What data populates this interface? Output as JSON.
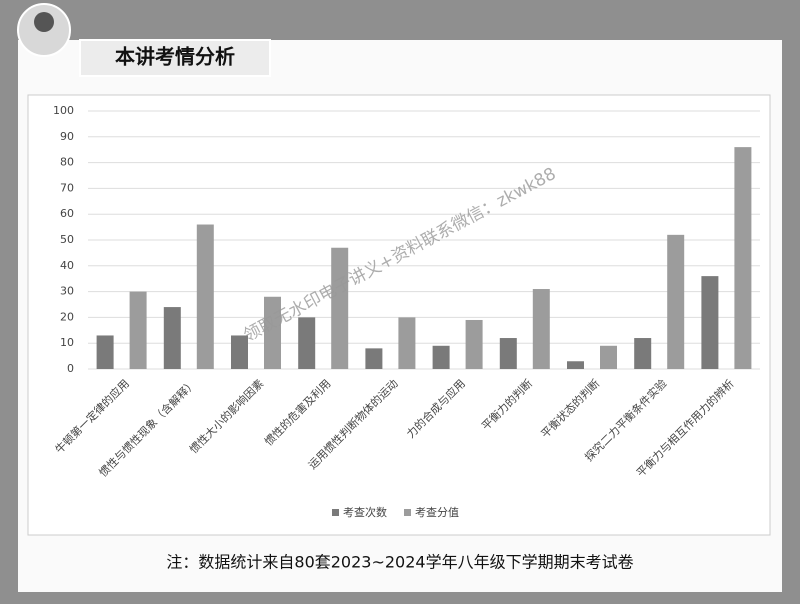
{
  "header": {
    "title": "本讲考情分析"
  },
  "chart_data": {
    "type": "bar",
    "categories": [
      "牛顿第一定律的应用",
      "惯性与惯性现象（含解释）",
      "惯性大小的影响因素",
      "惯性的危害及利用",
      "运用惯性判断物体的运动",
      "力的合成与应用",
      "平衡力的判断",
      "平衡状态的判断",
      "探究二力平衡条件实验",
      "平衡力与相互作用力的辨析"
    ],
    "series": [
      {
        "name": "考查次数",
        "color": "#7a7a7a",
        "values": [
          13,
          24,
          13,
          20,
          8,
          9,
          12,
          3,
          12,
          36
        ]
      },
      {
        "name": "考查分值",
        "color": "#9c9c9c",
        "values": [
          30,
          56,
          28,
          47,
          20,
          19,
          31,
          9,
          52,
          86
        ]
      }
    ],
    "ylim": [
      0,
      100
    ],
    "yticks": [
      0,
      10,
      20,
      30,
      40,
      50,
      60,
      70,
      80,
      90,
      100
    ],
    "grid": true,
    "legend": "bottom"
  },
  "watermark": "领取无水印电子讲义+资料联系微信：zkwk88",
  "footer": {
    "note": "注：数据统计来自80套2023~2024学年八年级下学期期末考试卷"
  }
}
